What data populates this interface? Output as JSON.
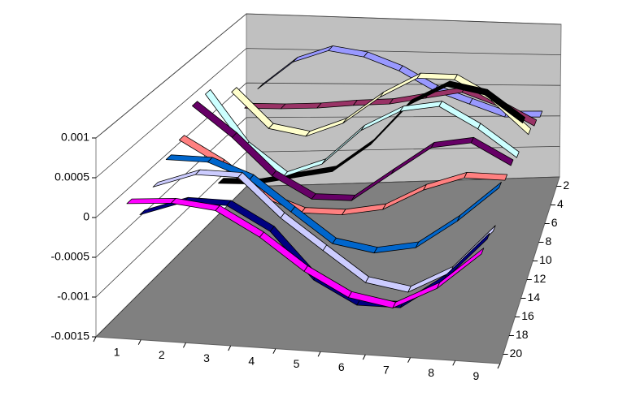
{
  "chart_data": {
    "type": "line",
    "categories": [
      1,
      2,
      3,
      4,
      5,
      6,
      7,
      8,
      9
    ],
    "ylim": [
      -0.0015,
      0.001
    ],
    "yticks": [
      -0.0015,
      -0.001,
      -0.0005,
      0,
      0.0005,
      0.001
    ],
    "zlim": [
      1,
      21
    ],
    "zticks": [
      2,
      4,
      6,
      8,
      10,
      12,
      14,
      16,
      18,
      20
    ],
    "grid": true,
    "series": [
      {
        "color": "#9999FF",
        "z": 1.5,
        "values": [
          0.0,
          0.0004,
          0.00058,
          0.0005,
          0.0003,
          0.0,
          -0.0002,
          -0.0004,
          -0.0004
        ]
      },
      {
        "color": "#993366",
        "z": 3.3,
        "values": [
          -0.0001,
          -0.0001,
          -8e-05,
          -3e-05,
          0.0,
          0.0001,
          0.0002,
          0.0,
          -0.0003
        ]
      },
      {
        "color": "#FFFFCC",
        "z": 5.1,
        "values": [
          0.0003,
          -0.0002,
          -0.0003,
          -0.0001,
          0.0003,
          0.0006,
          0.0006,
          0.0003,
          -0.0002
        ]
      },
      {
        "color": "#000000",
        "z": 6.9,
        "values": [
          -0.0008,
          -0.0008,
          -0.0007,
          -0.0006,
          -0.0002,
          0.0004,
          0.0007,
          0.0006,
          0.0002
        ]
      },
      {
        "color": "#CCFFFF",
        "z": 8.7,
        "values": [
          0.0006,
          -0.0001,
          -0.0005,
          -0.0003,
          0.0002,
          0.0005,
          0.0006,
          0.0003,
          -0.0001
        ]
      },
      {
        "color": "#660066",
        "z": 10.5,
        "values": [
          0.0006,
          0.0002,
          -0.0003,
          -0.0006,
          -0.0006,
          -0.0002,
          0.0002,
          0.0003,
          0.0
        ]
      },
      {
        "color": "#FF8080",
        "z": 12.3,
        "values": [
          0.0003,
          0.0,
          -0.0004,
          -0.0006,
          -0.0006,
          -0.0005,
          -0.0002,
          0.0,
          0.0
        ]
      },
      {
        "color": "#0066CC",
        "z": 14.1,
        "values": [
          0.0002,
          0.0002,
          0.0,
          -0.0004,
          -0.0008,
          -0.0009,
          -0.0008,
          -0.0004,
          0.0001
        ]
      },
      {
        "color": "#CCCCFF",
        "z": 15.9,
        "values": [
          0.0,
          0.0002,
          0.0002,
          -0.0003,
          -0.0007,
          -0.0011,
          -0.0012,
          -0.0009,
          -0.0003
        ]
      },
      {
        "color": "#000080",
        "z": 17.7,
        "values": [
          -0.0002,
          0.0,
          0.0,
          -0.0003,
          -0.0009,
          -0.0012,
          -0.0012,
          -0.0008,
          -0.0002
        ]
      },
      {
        "color": "#FF00FF",
        "z": 19.5,
        "values": [
          0.0001,
          0.00015,
          0.0001,
          -0.0002,
          -0.0006,
          -0.0009,
          -0.001,
          -0.0007,
          -0.0002
        ]
      }
    ]
  }
}
